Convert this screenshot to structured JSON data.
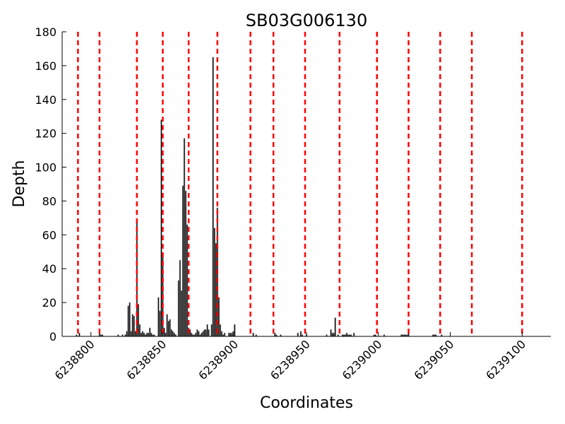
{
  "chart_data": {
    "type": "bar",
    "title": "SB03G006130",
    "xlabel": "Coordinates",
    "ylabel": "Depth",
    "xlim": [
      6238780,
      6239120
    ],
    "ylim": [
      0,
      180
    ],
    "xticks": [
      6238800,
      6238850,
      6238900,
      6238950,
      6239000,
      6239050,
      6239100
    ],
    "yticks": [
      0,
      20,
      40,
      60,
      80,
      100,
      120,
      140,
      160,
      180
    ],
    "grid": false,
    "legend": "none",
    "bar_color": "#000000",
    "bar_edge_color": "#808080",
    "marker_line_color": "#ff0000",
    "marker_line_style": "dashed",
    "marker_lines_x": [
      6238791,
      6238806,
      6238832,
      6238850,
      6238868,
      6238888,
      6238911,
      6238927,
      6238949,
      6238973,
      6238999,
      6239021,
      6239043,
      6239065,
      6239100
    ],
    "bars": [
      {
        "x": 6238790,
        "y": 1
      },
      {
        "x": 6238792,
        "y": 2
      },
      {
        "x": 6238806,
        "y": 2
      },
      {
        "x": 6238807,
        "y": 1
      },
      {
        "x": 6238808,
        "y": 1
      },
      {
        "x": 6238819,
        "y": 1
      },
      {
        "x": 6238822,
        "y": 1
      },
      {
        "x": 6238824,
        "y": 1
      },
      {
        "x": 6238825,
        "y": 3
      },
      {
        "x": 6238826,
        "y": 18
      },
      {
        "x": 6238827,
        "y": 20
      },
      {
        "x": 6238828,
        "y": 3
      },
      {
        "x": 6238829,
        "y": 13
      },
      {
        "x": 6238830,
        "y": 12
      },
      {
        "x": 6238831,
        "y": 3
      },
      {
        "x": 6238832,
        "y": 67
      },
      {
        "x": 6238833,
        "y": 19
      },
      {
        "x": 6238834,
        "y": 7
      },
      {
        "x": 6238835,
        "y": 2
      },
      {
        "x": 6238836,
        "y": 3
      },
      {
        "x": 6238837,
        "y": 2
      },
      {
        "x": 6238838,
        "y": 1
      },
      {
        "x": 6238839,
        "y": 2
      },
      {
        "x": 6238840,
        "y": 2
      },
      {
        "x": 6238841,
        "y": 5
      },
      {
        "x": 6238842,
        "y": 2
      },
      {
        "x": 6238843,
        "y": 1
      },
      {
        "x": 6238844,
        "y": 1
      },
      {
        "x": 6238847,
        "y": 23
      },
      {
        "x": 6238848,
        "y": 15
      },
      {
        "x": 6238849,
        "y": 128
      },
      {
        "x": 6238850,
        "y": 49
      },
      {
        "x": 6238851,
        "y": 5
      },
      {
        "x": 6238852,
        "y": 2
      },
      {
        "x": 6238853,
        "y": 13
      },
      {
        "x": 6238854,
        "y": 9
      },
      {
        "x": 6238855,
        "y": 10
      },
      {
        "x": 6238856,
        "y": 4
      },
      {
        "x": 6238857,
        "y": 3
      },
      {
        "x": 6238858,
        "y": 2
      },
      {
        "x": 6238859,
        "y": 1
      },
      {
        "x": 6238861,
        "y": 33
      },
      {
        "x": 6238862,
        "y": 45
      },
      {
        "x": 6238863,
        "y": 27
      },
      {
        "x": 6238864,
        "y": 89
      },
      {
        "x": 6238865,
        "y": 117
      },
      {
        "x": 6238866,
        "y": 86
      },
      {
        "x": 6238867,
        "y": 66
      },
      {
        "x": 6238868,
        "y": 5
      },
      {
        "x": 6238869,
        "y": 4
      },
      {
        "x": 6238870,
        "y": 2
      },
      {
        "x": 6238871,
        "y": 1
      },
      {
        "x": 6238872,
        "y": 1
      },
      {
        "x": 6238873,
        "y": 2
      },
      {
        "x": 6238874,
        "y": 4
      },
      {
        "x": 6238875,
        "y": 3
      },
      {
        "x": 6238876,
        "y": 1
      },
      {
        "x": 6238877,
        "y": 2
      },
      {
        "x": 6238878,
        "y": 3
      },
      {
        "x": 6238879,
        "y": 4
      },
      {
        "x": 6238880,
        "y": 4
      },
      {
        "x": 6238881,
        "y": 7
      },
      {
        "x": 6238882,
        "y": 4
      },
      {
        "x": 6238884,
        "y": 7
      },
      {
        "x": 6238885,
        "y": 165
      },
      {
        "x": 6238886,
        "y": 64
      },
      {
        "x": 6238887,
        "y": 55
      },
      {
        "x": 6238888,
        "y": 76
      },
      {
        "x": 6238889,
        "y": 23
      },
      {
        "x": 6238890,
        "y": 7
      },
      {
        "x": 6238891,
        "y": 3
      },
      {
        "x": 6238892,
        "y": 1
      },
      {
        "x": 6238893,
        "y": 2
      },
      {
        "x": 6238896,
        "y": 2
      },
      {
        "x": 6238897,
        "y": 2
      },
      {
        "x": 6238898,
        "y": 2
      },
      {
        "x": 6238899,
        "y": 3
      },
      {
        "x": 6238900,
        "y": 7
      },
      {
        "x": 6238913,
        "y": 2
      },
      {
        "x": 6238915,
        "y": 1
      },
      {
        "x": 6238928,
        "y": 2
      },
      {
        "x": 6238929,
        "y": 1
      },
      {
        "x": 6238932,
        "y": 1
      },
      {
        "x": 6238944,
        "y": 2
      },
      {
        "x": 6238946,
        "y": 3
      },
      {
        "x": 6238947,
        "y": 1
      },
      {
        "x": 6238950,
        "y": 1
      },
      {
        "x": 6238964,
        "y": 1
      },
      {
        "x": 6238967,
        "y": 4
      },
      {
        "x": 6238968,
        "y": 2
      },
      {
        "x": 6238969,
        "y": 2
      },
      {
        "x": 6238970,
        "y": 11
      },
      {
        "x": 6238972,
        "y": 1
      },
      {
        "x": 6238975,
        "y": 1
      },
      {
        "x": 6238976,
        "y": 1
      },
      {
        "x": 6238977,
        "y": 1
      },
      {
        "x": 6238978,
        "y": 2
      },
      {
        "x": 6238979,
        "y": 1
      },
      {
        "x": 6238980,
        "y": 1
      },
      {
        "x": 6238981,
        "y": 1
      },
      {
        "x": 6238983,
        "y": 2
      },
      {
        "x": 6238997,
        "y": 1
      },
      {
        "x": 6238998,
        "y": 1
      },
      {
        "x": 6239004,
        "y": 1
      },
      {
        "x": 6239016,
        "y": 1
      },
      {
        "x": 6239017,
        "y": 1
      },
      {
        "x": 6239018,
        "y": 1
      },
      {
        "x": 6239019,
        "y": 1
      },
      {
        "x": 6239020,
        "y": 1
      },
      {
        "x": 6239021,
        "y": 2
      },
      {
        "x": 6239038,
        "y": 1
      },
      {
        "x": 6239039,
        "y": 1
      },
      {
        "x": 6239040,
        "y": 1
      },
      {
        "x": 6239044,
        "y": 1
      }
    ]
  }
}
